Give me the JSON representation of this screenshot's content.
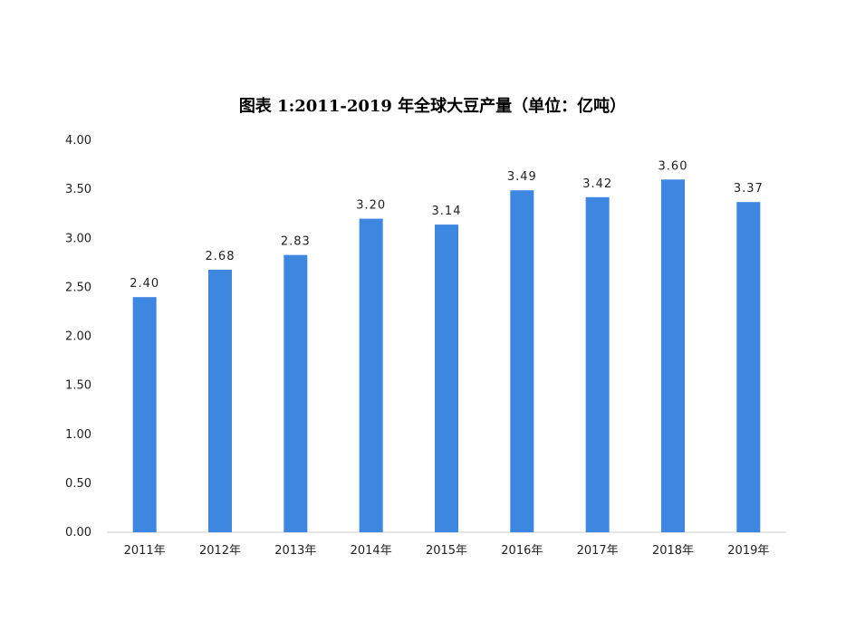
{
  "chart_data": {
    "type": "bar",
    "title": "图表 1:2011-2019 年全球大豆产量（单位：亿吨）",
    "categories": [
      "2011年",
      "2012年",
      "2013年",
      "2014年",
      "2015年",
      "2016年",
      "2017年",
      "2018年",
      "2019年"
    ],
    "values": [
      2.4,
      2.68,
      2.83,
      3.2,
      3.14,
      3.49,
      3.42,
      3.6,
      3.37
    ],
    "value_labels": [
      "2.40",
      "2.68",
      "2.83",
      "3.20",
      "3.14",
      "3.49",
      "3.42",
      "3.60",
      "3.37"
    ],
    "yticks": [
      "0.00",
      "0.50",
      "1.00",
      "1.50",
      "2.00",
      "2.50",
      "3.00",
      "3.50",
      "4.00"
    ],
    "ylim": [
      0,
      4
    ],
    "xlabel": "",
    "ylabel": "",
    "grid": false,
    "legend": "none",
    "bar_color": "#3d87e0"
  }
}
